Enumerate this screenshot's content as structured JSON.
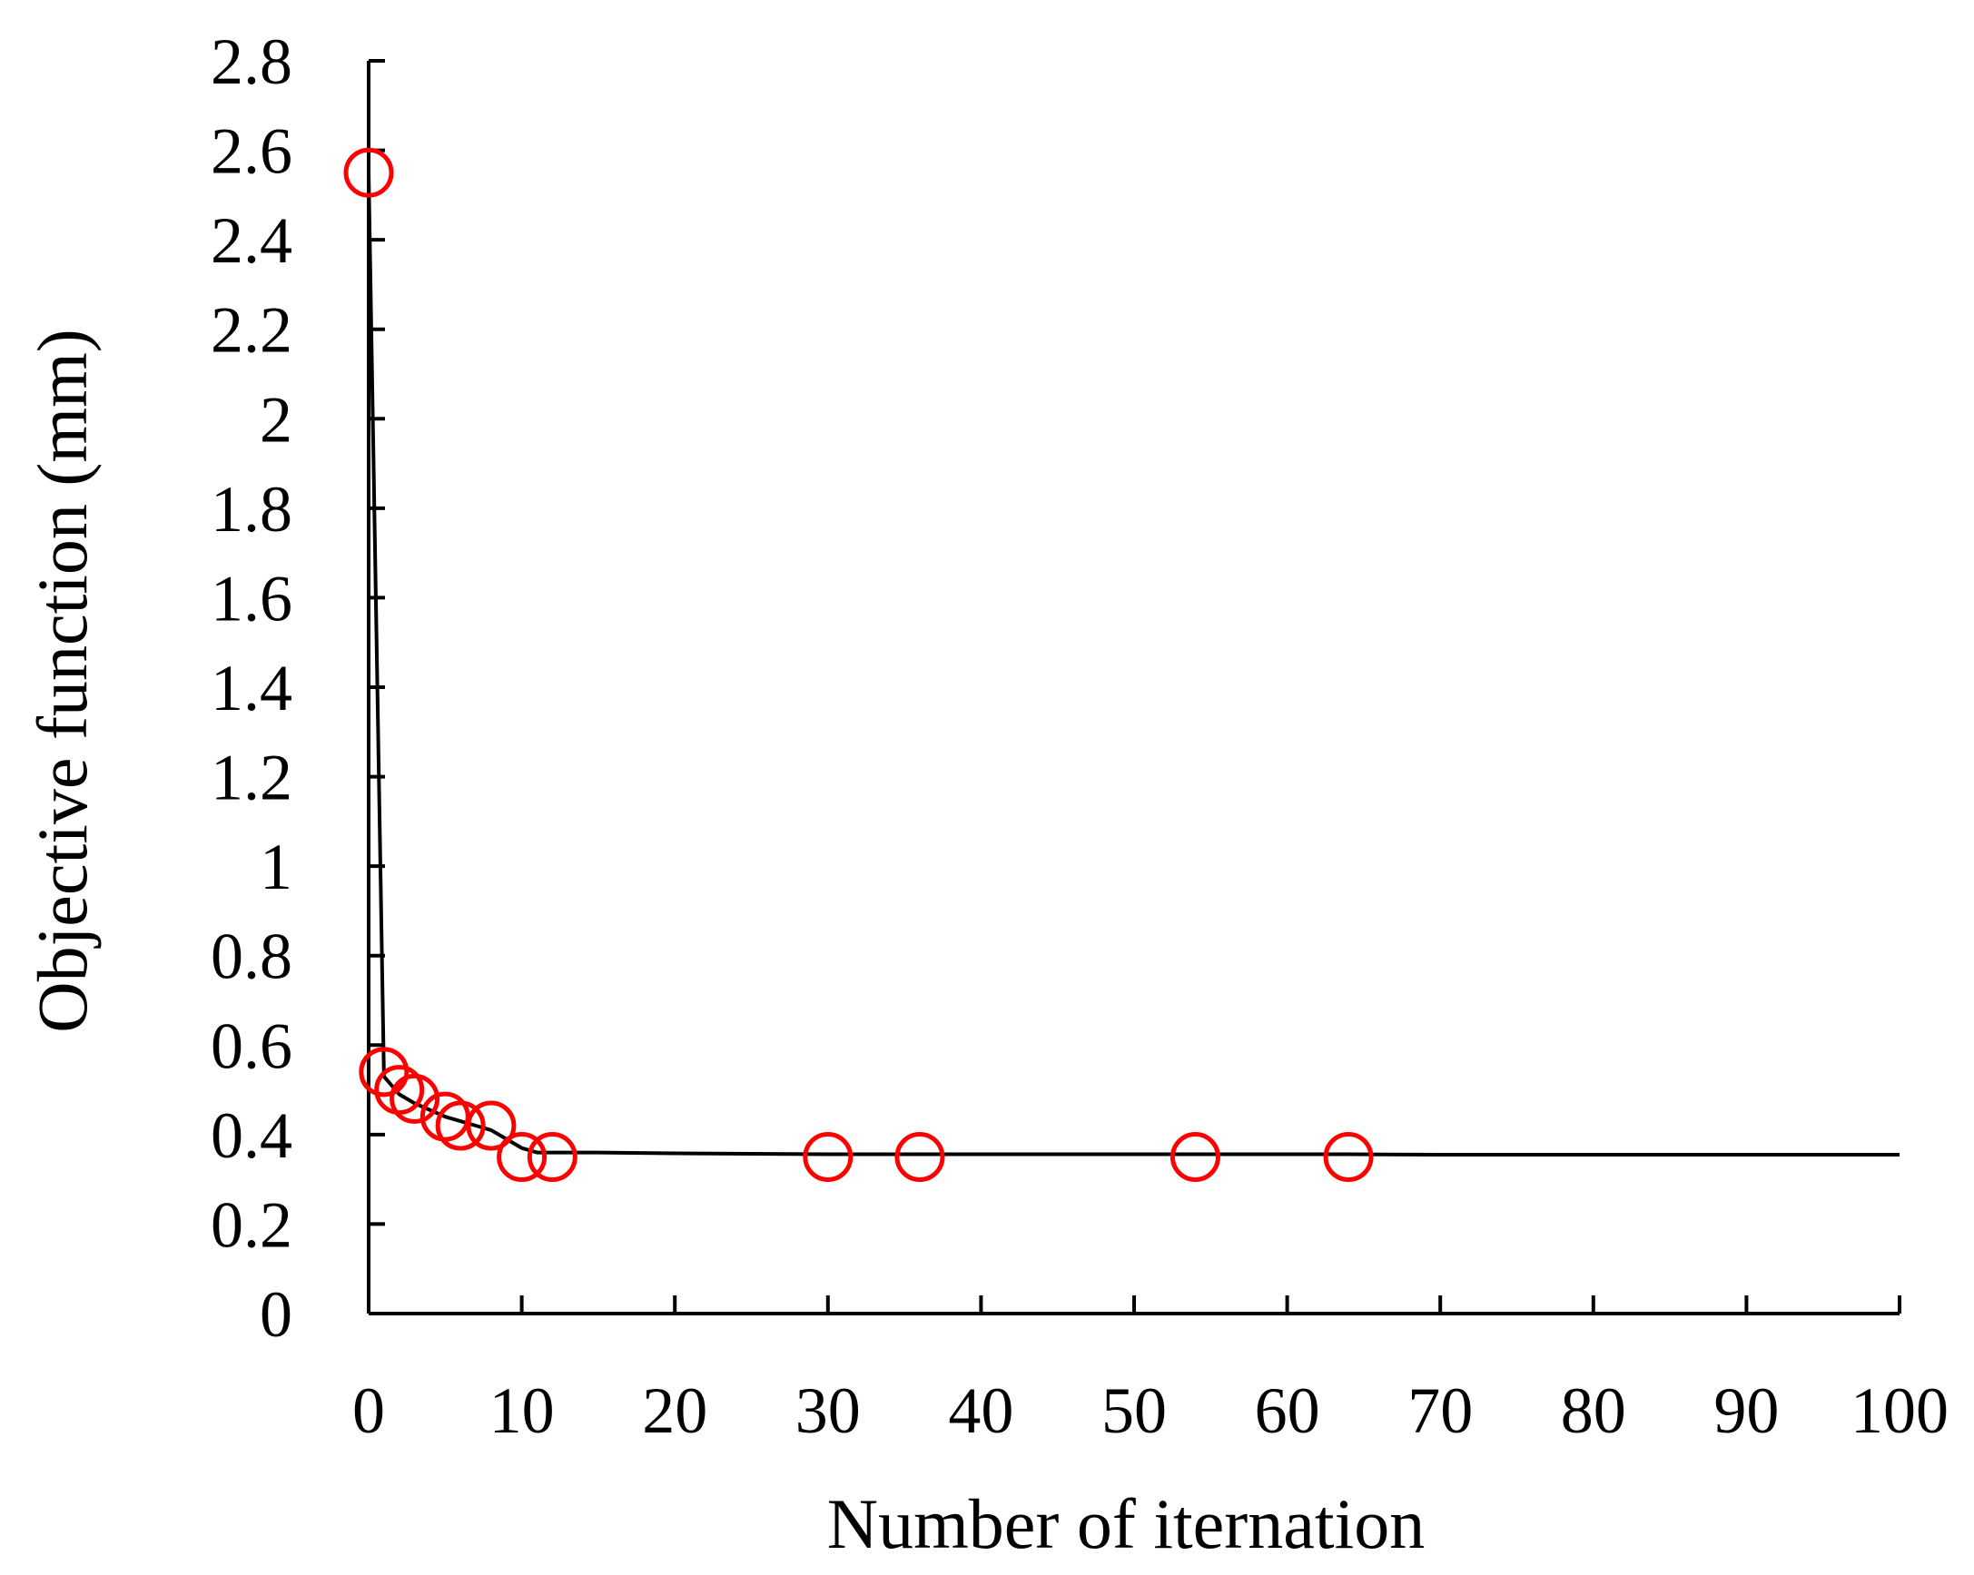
{
  "chart_data": {
    "type": "line",
    "title": "",
    "xlabel": "Number of iternation",
    "ylabel": "Objective function (mm)",
    "xlim": [
      0,
      100
    ],
    "ylim": [
      0,
      2.8
    ],
    "xticks": [
      0,
      10,
      20,
      30,
      40,
      50,
      60,
      70,
      80,
      90,
      100
    ],
    "yticks": [
      0,
      0.2,
      0.4,
      0.6,
      0.8,
      1,
      1.2,
      1.4,
      1.6,
      1.8,
      2,
      2.2,
      2.4,
      2.6,
      2.8
    ],
    "xtick_labels": [
      "0",
      "10",
      "20",
      "30",
      "40",
      "50",
      "60",
      "70",
      "80",
      "90",
      "100"
    ],
    "ytick_labels": [
      "0",
      "0.2",
      "0.4",
      "0.6",
      "0.8",
      "1",
      "1.2",
      "1.4",
      "1.6",
      "1.8",
      "2",
      "2.2",
      "2.4",
      "2.6",
      "2.8"
    ],
    "grid": false,
    "legend": false,
    "series": [
      {
        "style": "line",
        "color": "#000000",
        "x": [
          0,
          1,
          2,
          3,
          4,
          5,
          6,
          7,
          8,
          9,
          10,
          11,
          12,
          15,
          20,
          25,
          30,
          36,
          40,
          50,
          54,
          60,
          64,
          70,
          80,
          90,
          100
        ],
        "y": [
          2.55,
          0.53,
          0.49,
          0.47,
          0.455,
          0.44,
          0.43,
          0.42,
          0.41,
          0.39,
          0.37,
          0.36,
          0.36,
          0.36,
          0.358,
          0.357,
          0.356,
          0.356,
          0.356,
          0.356,
          0.356,
          0.356,
          0.356,
          0.355,
          0.355,
          0.355,
          0.355
        ]
      },
      {
        "style": "marker",
        "marker": "open-circle",
        "color": "#ff0000",
        "x": [
          0,
          1,
          2,
          3,
          5,
          6,
          8,
          10,
          12,
          30,
          36,
          54,
          64
        ],
        "y": [
          2.55,
          0.54,
          0.5,
          0.48,
          0.44,
          0.42,
          0.42,
          0.35,
          0.35,
          0.35,
          0.35,
          0.35,
          0.35
        ]
      }
    ]
  }
}
